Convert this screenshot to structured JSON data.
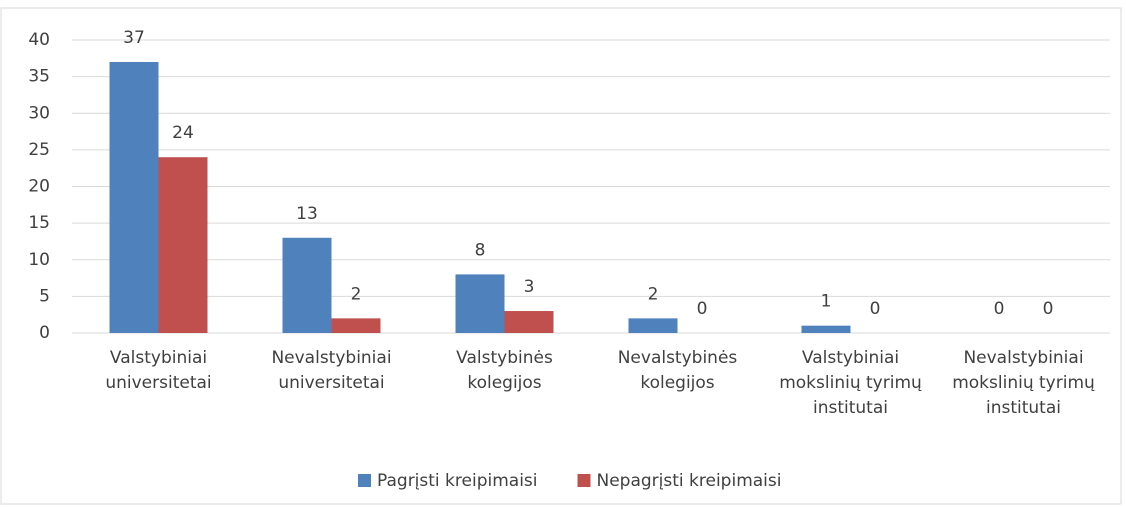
{
  "chart_data": {
    "type": "bar",
    "categories": [
      [
        "Valstybiniai",
        "universitetai"
      ],
      [
        "Nevalstybiniai",
        "universitetai"
      ],
      [
        "Valstybinės",
        "kolegijos"
      ],
      [
        "Nevalstybinės",
        "kolegijos"
      ],
      [
        "Valstybiniai",
        "mokslinių tyrimų",
        "institutai"
      ],
      [
        "Nevalstybiniai",
        "mokslinių tyrimų",
        "institutai"
      ]
    ],
    "series": [
      {
        "name": "Pagrįsti kreipimaisi",
        "color": "#4f81bd",
        "values": [
          37,
          13,
          8,
          2,
          1,
          0
        ]
      },
      {
        "name": "Nepagrįsti kreipimaisi",
        "color": "#c0504d",
        "values": [
          24,
          2,
          3,
          0,
          0,
          0
        ]
      }
    ],
    "ylim": [
      0,
      40
    ],
    "yticks": [
      0,
      5,
      10,
      15,
      20,
      25,
      30,
      35,
      40
    ],
    "grid": true,
    "legend": "bottom"
  }
}
